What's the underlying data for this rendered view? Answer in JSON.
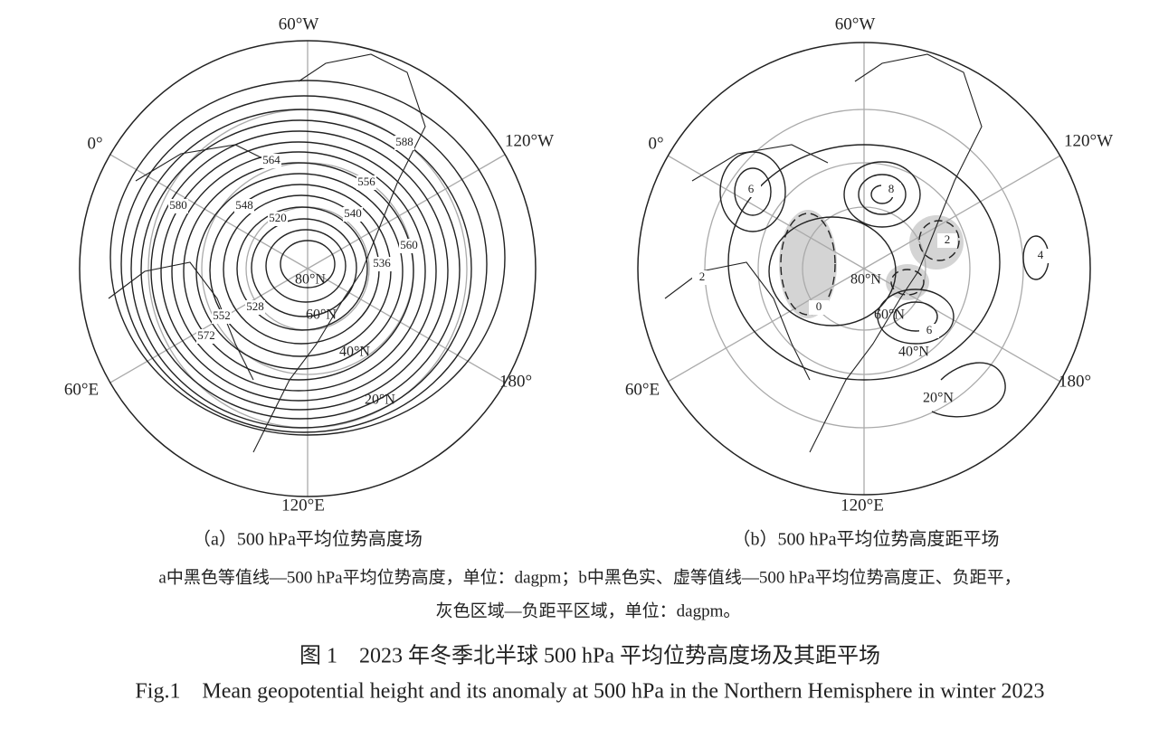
{
  "panel_a": {
    "caption": "（a）500 hPa平均位势高度场",
    "longitude_labels": [
      "60°W",
      "0°",
      "120°W",
      "60°E",
      "180°",
      "120°E"
    ],
    "latitude_labels": [
      "80°N",
      "60°N",
      "40°N",
      "20°N"
    ],
    "contour_labels": [
      "588",
      "580",
      "572",
      "564",
      "556",
      "548",
      "540",
      "536",
      "560",
      "552",
      "528",
      "520"
    ]
  },
  "panel_b": {
    "caption": "（b）500 hPa平均位势高度距平场",
    "longitude_labels": [
      "60°W",
      "0°",
      "120°W",
      "60°E",
      "180°",
      "120°E"
    ],
    "latitude_labels": [
      "80°N",
      "60°N",
      "40°N",
      "20°N"
    ],
    "contour_labels": [
      "8",
      "6",
      "2",
      "4",
      "2",
      "6",
      "0"
    ]
  },
  "note": [
    "a中黑色等值线—500 hPa平均位势高度，单位：dagpm；b中黑色实、虚等值线—500 hPa平均位势高度正、负距平，",
    "灰色区域—负距平区域，单位：dagpm。"
  ],
  "title_cn": "图 1　2023 年冬季北半球 500 hPa 平均位势高度场及其距平场",
  "title_en": "Fig.1　Mean geopotential height and its anomaly at 500 hPa in the Northern Hemisphere in winter 2023"
}
